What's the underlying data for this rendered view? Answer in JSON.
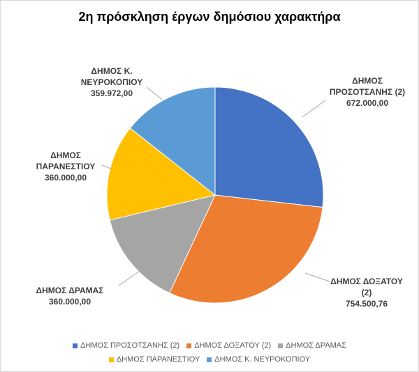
{
  "chart_data": {
    "type": "pie",
    "title": "2η πρόσκληση έργων δημόσιου χαρακτήρα",
    "slices": [
      {
        "label_lines": [
          "ΔΗΜΟΣ",
          "ΠΡΟΣΟΤΣΑΝΗΣ (2)"
        ],
        "legend": "ΔΗΜΟΣ ΠΡΟΣΟΤΣΑΝΗΣ (2)",
        "value": 672000.0,
        "value_text": "672.000,00",
        "color": "#4472C4"
      },
      {
        "label_lines": [
          "ΔΗΜΟΣ ΔΟΞΑΤΟΥ",
          "(2)"
        ],
        "legend": "ΔΗΜΟΣ ΔΟΞΑΤΟΥ (2)",
        "value": 754500.76,
        "value_text": "754.500,76",
        "color": "#ED7D31"
      },
      {
        "label_lines": [
          "ΔΗΜΟΣ ΔΡΑΜΑΣ"
        ],
        "legend": "ΔΗΜΟΣ ΔΡΑΜΑΣ",
        "value": 360000.0,
        "value_text": "360.000,00",
        "color": "#A5A5A5"
      },
      {
        "label_lines": [
          "ΔΗΜΟΣ",
          "ΠΑΡΑΝΕΣΤΙΟΥ"
        ],
        "legend": "ΔΗΜΟΣ ΠΑΡΑΝΕΣΤΙΟΥ",
        "value": 360000.0,
        "value_text": "360.000,00",
        "color": "#FFC000"
      },
      {
        "label_lines": [
          "ΔΗΜΟΣ Κ.",
          "ΝΕΥΡΟΚΟΠΙΟΥ"
        ],
        "legend": "ΔΗΜΟΣ Κ. ΝΕΥΡΟΚΟΠΙΟΥ",
        "value": 359972.0,
        "value_text": "359.972,00",
        "color": "#5B9BD5"
      }
    ],
    "legend_position": "bottom"
  }
}
